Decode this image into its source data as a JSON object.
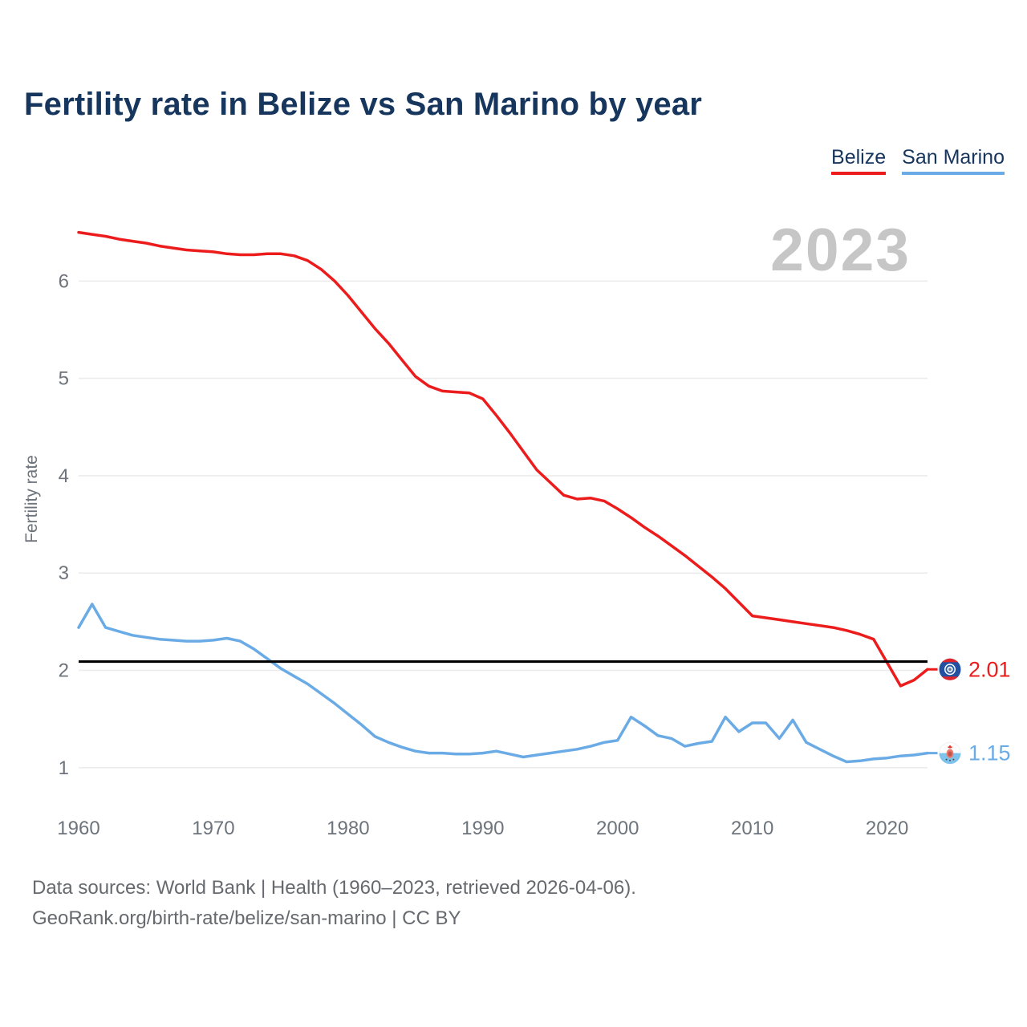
{
  "header": {
    "title": "Fertility rate in Belize vs San Marino by year"
  },
  "legend": [
    {
      "label": "Belize",
      "color": "#ed1c1c"
    },
    {
      "label": "San Marino",
      "color": "#6aabe5"
    }
  ],
  "watermark": "2023",
  "y_axis": {
    "title": "Fertility rate",
    "ticks": [
      1,
      2,
      3,
      4,
      5,
      6
    ]
  },
  "x_axis": {
    "ticks": [
      1960,
      1970,
      1980,
      1990,
      2000,
      2010,
      2020
    ]
  },
  "footer": {
    "line1": "Data sources: World Bank | Health (1960–2023, retrieved 2026-04-06).",
    "line2": "GeoRank.org/birth-rate/belize/san-marino | CC BY"
  },
  "chart_data": {
    "type": "line",
    "title": "Fertility rate in Belize vs San Marino by year",
    "xlabel": "",
    "ylabel": "Fertility rate",
    "xlim": [
      1960,
      2023
    ],
    "ylim": [
      0.6,
      6.9
    ],
    "grid": "horizontal",
    "legend_position": "top-right",
    "watermark_year": "2023",
    "reference_line": {
      "value": 2.09,
      "color": "#000000"
    },
    "years": [
      1960,
      1961,
      1962,
      1963,
      1964,
      1965,
      1966,
      1967,
      1968,
      1969,
      1970,
      1971,
      1972,
      1973,
      1974,
      1975,
      1976,
      1977,
      1978,
      1979,
      1980,
      1981,
      1982,
      1983,
      1984,
      1985,
      1986,
      1987,
      1988,
      1989,
      1990,
      1991,
      1992,
      1993,
      1994,
      1995,
      1996,
      1997,
      1998,
      1999,
      2000,
      2001,
      2002,
      2003,
      2004,
      2005,
      2006,
      2007,
      2008,
      2009,
      2010,
      2011,
      2012,
      2013,
      2014,
      2015,
      2016,
      2017,
      2018,
      2019,
      2020,
      2021,
      2022,
      2023
    ],
    "series": [
      {
        "name": "Belize",
        "color": "#ed1c1c",
        "end_label": "2.01",
        "values": [
          6.5,
          6.48,
          6.46,
          6.43,
          6.41,
          6.39,
          6.36,
          6.34,
          6.32,
          6.31,
          6.3,
          6.28,
          6.27,
          6.27,
          6.28,
          6.28,
          6.26,
          6.21,
          6.12,
          6.0,
          5.85,
          5.68,
          5.51,
          5.36,
          5.19,
          5.02,
          4.92,
          4.87,
          4.86,
          4.85,
          4.79,
          4.62,
          4.44,
          4.25,
          4.06,
          3.93,
          3.8,
          3.76,
          3.77,
          3.74,
          3.66,
          3.57,
          3.47,
          3.38,
          3.28,
          3.18,
          3.07,
          2.96,
          2.84,
          2.7,
          2.56,
          2.54,
          2.52,
          2.5,
          2.48,
          2.46,
          2.44,
          2.41,
          2.37,
          2.32,
          2.08,
          1.84,
          1.9,
          2.01
        ]
      },
      {
        "name": "San Marino",
        "color": "#6aabe5",
        "end_label": "1.15",
        "values": [
          2.44,
          2.68,
          2.44,
          2.4,
          2.36,
          2.34,
          2.32,
          2.31,
          2.3,
          2.3,
          2.31,
          2.33,
          2.3,
          2.22,
          2.12,
          2.02,
          1.94,
          1.86,
          1.76,
          1.66,
          1.55,
          1.44,
          1.32,
          1.26,
          1.21,
          1.17,
          1.15,
          1.15,
          1.14,
          1.14,
          1.15,
          1.17,
          1.14,
          1.11,
          1.13,
          1.15,
          1.17,
          1.19,
          1.22,
          1.26,
          1.28,
          1.52,
          1.43,
          1.33,
          1.3,
          1.22,
          1.25,
          1.27,
          1.52,
          1.37,
          1.46,
          1.46,
          1.3,
          1.49,
          1.26,
          1.19,
          1.12,
          1.06,
          1.07,
          1.09,
          1.1,
          1.12,
          1.13,
          1.15
        ]
      }
    ]
  }
}
